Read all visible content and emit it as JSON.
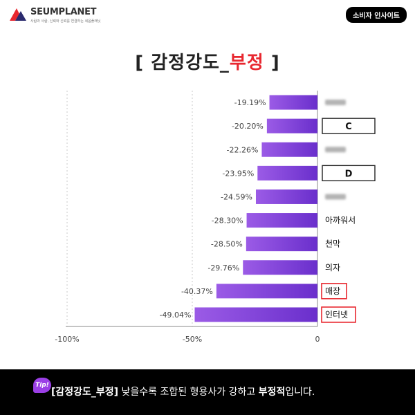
{
  "header": {
    "logo_name": "SEUMPLANET",
    "logo_tagline": "사람과 사람, 신뢰와 신뢰를 연결하는 세움플래닛",
    "badge": "소비자 인사이트"
  },
  "title": {
    "bracket_left": "[ ",
    "main": "감정강도_",
    "accent": "부정",
    "bracket_right": " ]"
  },
  "colors": {
    "bar_start": "#9b5be6",
    "bar_end": "#6a2fcc",
    "accent_red": "#e8272f",
    "grid": "#c8c8c8"
  },
  "chart_data": {
    "type": "bar",
    "orientation": "horizontal",
    "categories": [
      "blurred-1",
      "C",
      "blurred-2",
      "D",
      "blurred-3",
      "아까워서",
      "천막",
      "의자",
      "매장",
      "인터넷"
    ],
    "label_style": [
      "blurred",
      "boxed",
      "blurred",
      "boxed",
      "blurred",
      "plain",
      "plain",
      "plain",
      "red-box",
      "red-box"
    ],
    "values": [
      -19.19,
      -20.2,
      -22.26,
      -23.95,
      -24.59,
      -28.3,
      -28.5,
      -29.76,
      -40.37,
      -49.04
    ],
    "value_labels": [
      "-19.19%",
      "-20.20%",
      "-22.26%",
      "-23.95%",
      "-24.59%",
      "-28.30%",
      "-28.50%",
      "-29.76%",
      "-40.37%",
      "-49.04%"
    ],
    "xlim": [
      -100,
      0
    ],
    "xticks": [
      -100,
      -50,
      0
    ],
    "xtick_labels": [
      "-100%",
      "-50%",
      "0"
    ],
    "grid": "vertical dashed at -50"
  },
  "footer": {
    "tip": "Tip!",
    "text_bold": "[감정강도_부정]",
    "text_mid": " 낮을수록 조합된 형용사가 강하고 ",
    "text_bold2": "부정적",
    "text_end": "입니다."
  }
}
